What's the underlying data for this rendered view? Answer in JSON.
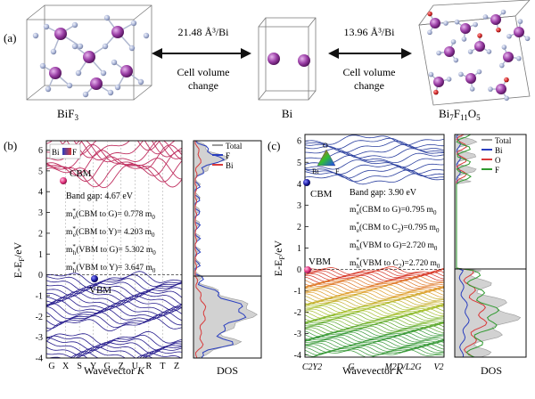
{
  "panel_a": {
    "label": "(a)",
    "left_compound": "BiF3",
    "left_compound_base": "BiF",
    "left_compound_sub": "3",
    "middle_compound": "Bi",
    "right_compound_parts": [
      "Bi",
      "7",
      "F",
      "11",
      "O",
      "5"
    ],
    "right_compound": "Bi7F11O5",
    "left_volume": "21.48 Å³/Bi",
    "right_volume": "13.96 Å³/Bi",
    "change_line1": "Cell volume",
    "change_line2": "change",
    "colors": {
      "Bi": "#9b3fa6",
      "F": "#a9b4d6",
      "O": "#d22a2a"
    }
  },
  "panel_b": {
    "label": "(b)",
    "y_axis_label": "E-E",
    "y_axis_sub": "F",
    "y_axis_unit": "/eV",
    "x_axis_label": "Wavevector",
    "x_axis_var": "K",
    "kpoints": [
      "G",
      "X",
      "S",
      "Y",
      "G",
      "Z",
      "U",
      "R",
      "T",
      "Z"
    ],
    "yticks": [
      "-4",
      "-3",
      "-2",
      "-1",
      "0",
      "1",
      "2",
      "3",
      "4",
      "5",
      "6"
    ],
    "cbm_label": "CBM",
    "vbm_label": "VBM",
    "legend_bi": "Bi",
    "legend_f": "F",
    "band_gap": "Band gap: 4.67 eV",
    "masses": [
      "m*e(CBM to G)= 0.778 m0",
      "m*e(CBM to Y)= 4.203 m0",
      "m*h(VBM to G)= 5.302 m0",
      "m*h(VBM to Y)= 3.647 m0"
    ],
    "mass_parts": [
      {
        "t": "e",
        "tail": "(CBM to G)= 0.778 m"
      },
      {
        "t": "e",
        "tail": "(CBM to Y)= 4.203 m"
      },
      {
        "t": "h",
        "tail": "(VBM to G)= 5.302 m"
      },
      {
        "t": "h",
        "tail": "(VBM to Y)= 3.647 m"
      }
    ],
    "dos_label": "DOS",
    "dos_legend": [
      "Total",
      "F",
      "Bi"
    ],
    "dos_colors": [
      "#9a9a9a",
      "#2a3fbf",
      "#d93a3a"
    ],
    "conduction_color": "#c03060",
    "valence_color": "#241a8c"
  },
  "panel_c": {
    "label": "(c)",
    "y_axis_label": "E-E",
    "y_axis_sub": "F",
    "y_axis_unit": "/eV",
    "x_axis_label": "Wavevector",
    "x_axis_var": "K",
    "kpoints": [
      "C2Y2",
      "G",
      "M2D/L2G",
      "V2"
    ],
    "yticks": [
      "-4",
      "-3",
      "-2",
      "-1",
      "0",
      "1",
      "2",
      "3",
      "4",
      "5",
      "6"
    ],
    "cbm_label": "CBM",
    "vbm_label": "VBM",
    "triangle_labels": [
      "O",
      "Bi",
      "F"
    ],
    "band_gap": "Band gap: 3.90 eV",
    "masses": [
      "m*e(CBM to G)=0.795 m0",
      "m*e(CBM to C2)=0.795 m0",
      "m*h(VBM to G)=2.720 m0",
      "m*h(VBM to C2)=2.720 m0"
    ],
    "dos_label": "DOS",
    "dos_legend": [
      "Total",
      "Bi",
      "O",
      "F"
    ],
    "dos_colors": [
      "#9a9a9a",
      "#2a3fbf",
      "#d93a3a",
      "#2f9a2f"
    ],
    "conduction_color": "#2a3f9f"
  }
}
